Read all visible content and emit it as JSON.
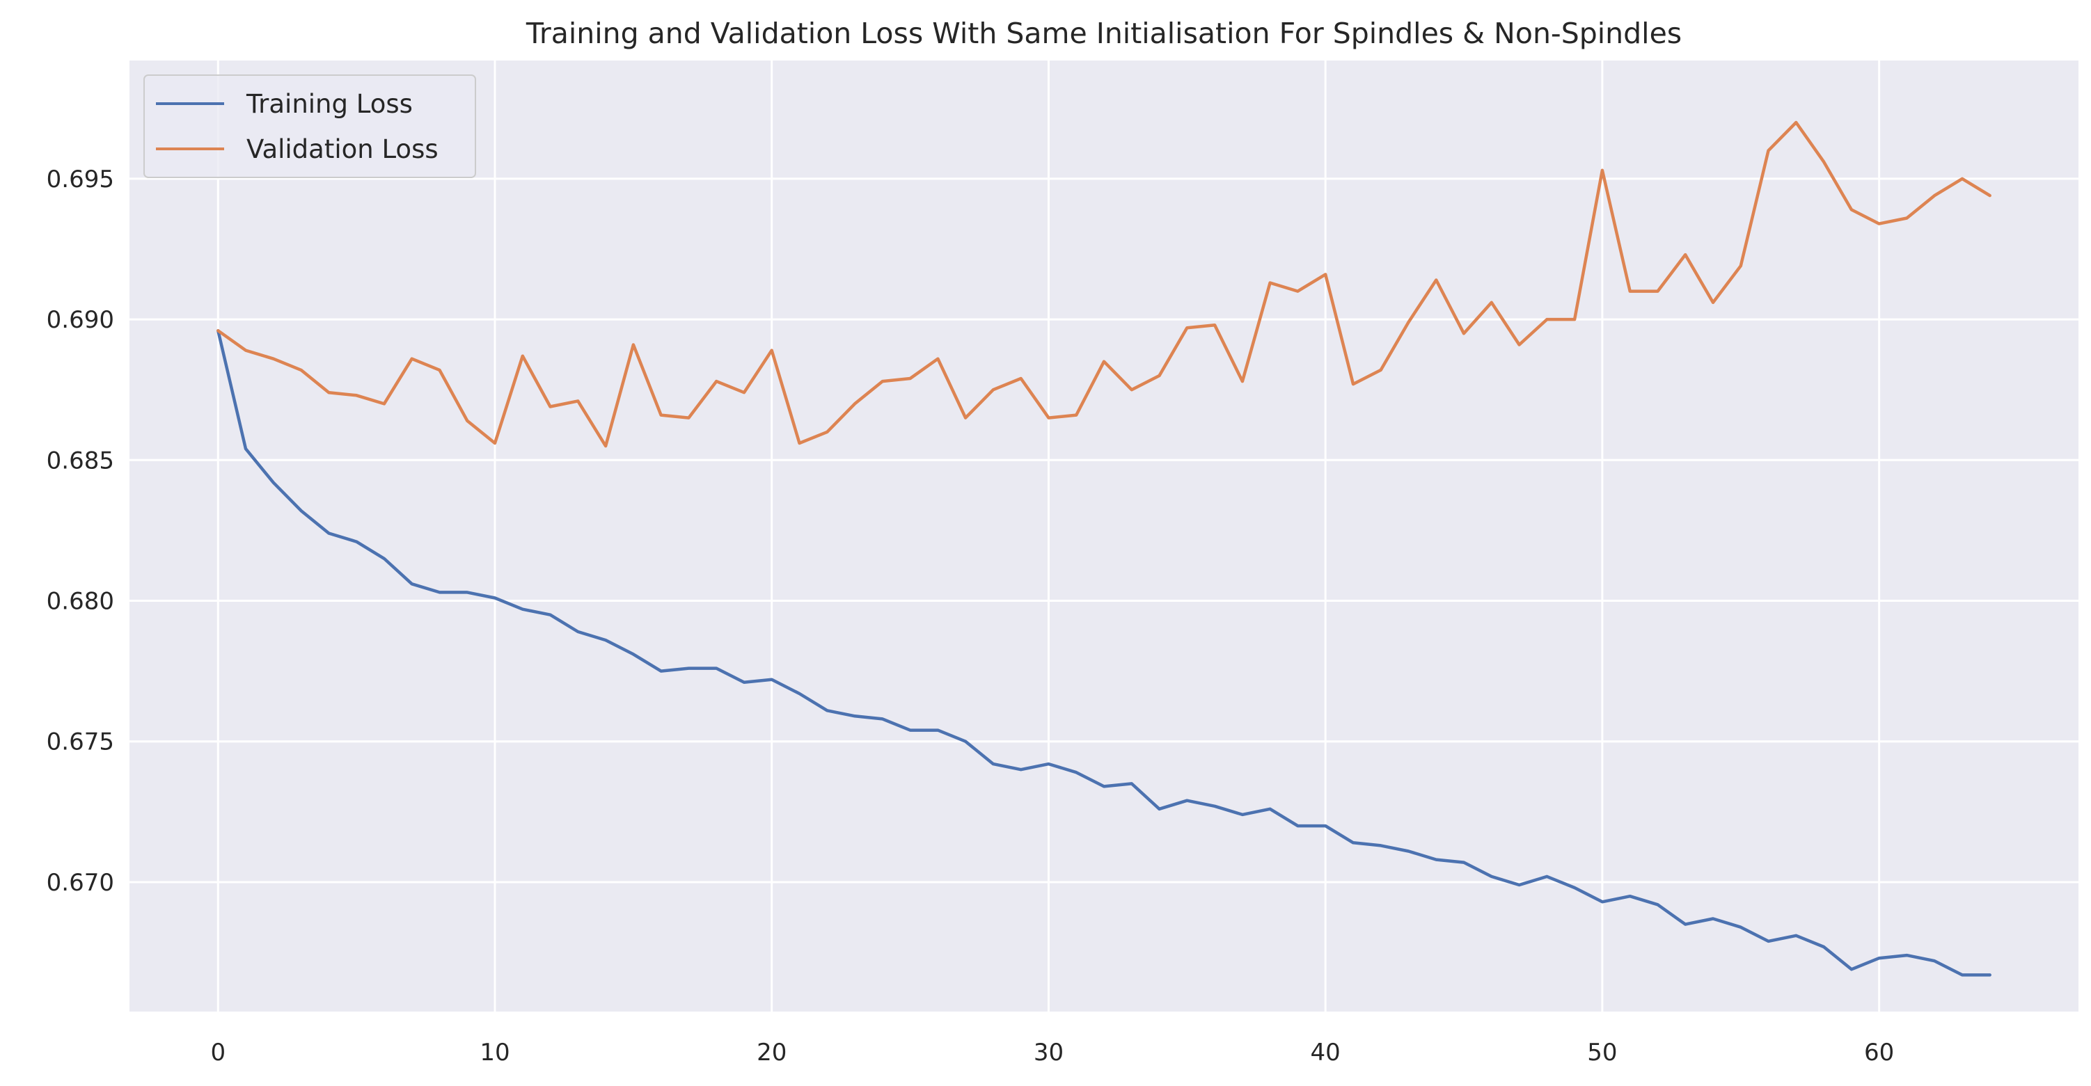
{
  "chart_data": {
    "type": "line",
    "title": "Training and Validation Loss With Same Initialisation For Spindles & Non-Spindles",
    "xlabel": "",
    "ylabel": "",
    "xlim": [
      -3.2,
      67.2
    ],
    "ylim": [
      0.6654,
      0.6992
    ],
    "xticks": [
      0,
      10,
      20,
      30,
      40,
      50,
      60
    ],
    "yticks": [
      0.67,
      0.675,
      0.68,
      0.685,
      0.69,
      0.695
    ],
    "xtick_labels": [
      "0",
      "10",
      "20",
      "30",
      "40",
      "50",
      "60"
    ],
    "ytick_labels": [
      "0.670",
      "0.675",
      "0.680",
      "0.685",
      "0.690",
      "0.695"
    ],
    "grid": true,
    "legend_position": "top-left",
    "style": {
      "background": "#eaeaf2",
      "grid_color": "#ffffff"
    },
    "x": [
      0,
      1,
      2,
      3,
      4,
      5,
      6,
      7,
      8,
      9,
      10,
      11,
      12,
      13,
      14,
      15,
      16,
      17,
      18,
      19,
      20,
      21,
      22,
      23,
      24,
      25,
      26,
      27,
      28,
      29,
      30,
      31,
      32,
      33,
      34,
      35,
      36,
      37,
      38,
      39,
      40,
      41,
      42,
      43,
      44,
      45,
      46,
      47,
      48,
      49,
      50,
      51,
      52,
      53,
      54,
      55,
      56,
      57,
      58,
      59,
      60,
      61,
      62,
      63,
      64
    ],
    "series": [
      {
        "name": "Training Loss",
        "color": "#4c72b0",
        "values": [
          0.6896,
          0.6854,
          0.6842,
          0.6832,
          0.6824,
          0.6821,
          0.6815,
          0.6806,
          0.6803,
          0.6803,
          0.6801,
          0.6797,
          0.6795,
          0.6789,
          0.6786,
          0.6781,
          0.6775,
          0.6776,
          0.6776,
          0.6771,
          0.6772,
          0.6767,
          0.6761,
          0.6759,
          0.6758,
          0.6754,
          0.6754,
          0.675,
          0.6742,
          0.674,
          0.6742,
          0.6739,
          0.6734,
          0.6735,
          0.6726,
          0.6729,
          0.6727,
          0.6724,
          0.6726,
          0.672,
          0.672,
          0.6714,
          0.6713,
          0.6711,
          0.6708,
          0.6707,
          0.6702,
          0.6699,
          0.6702,
          0.6698,
          0.6693,
          0.6695,
          0.6692,
          0.6685,
          0.6687,
          0.6684,
          0.6679,
          0.6681,
          0.6677,
          0.6669,
          0.6673,
          0.6674,
          0.6672,
          0.6667,
          0.6667
        ]
      },
      {
        "name": "Validation Loss",
        "color": "#dd8452",
        "values": [
          0.6896,
          0.6889,
          0.6886,
          0.6882,
          0.6874,
          0.6873,
          0.687,
          0.6886,
          0.6882,
          0.6864,
          0.6856,
          0.6887,
          0.6869,
          0.6871,
          0.6855,
          0.6891,
          0.6866,
          0.6865,
          0.6878,
          0.6874,
          0.6889,
          0.6856,
          0.686,
          0.687,
          0.6878,
          0.6879,
          0.6886,
          0.6865,
          0.6875,
          0.6879,
          0.6865,
          0.6866,
          0.6885,
          0.6875,
          0.688,
          0.6897,
          0.6898,
          0.6878,
          0.6913,
          0.691,
          0.6916,
          0.6877,
          0.6882,
          0.6899,
          0.6914,
          0.6895,
          0.6906,
          0.6891,
          0.69,
          0.69,
          0.6953,
          0.691,
          0.691,
          0.6923,
          0.6906,
          0.6919,
          0.696,
          0.697,
          0.6956,
          0.6939,
          0.6934,
          0.6936,
          0.6944,
          0.695,
          0.6944
        ]
      }
    ]
  }
}
